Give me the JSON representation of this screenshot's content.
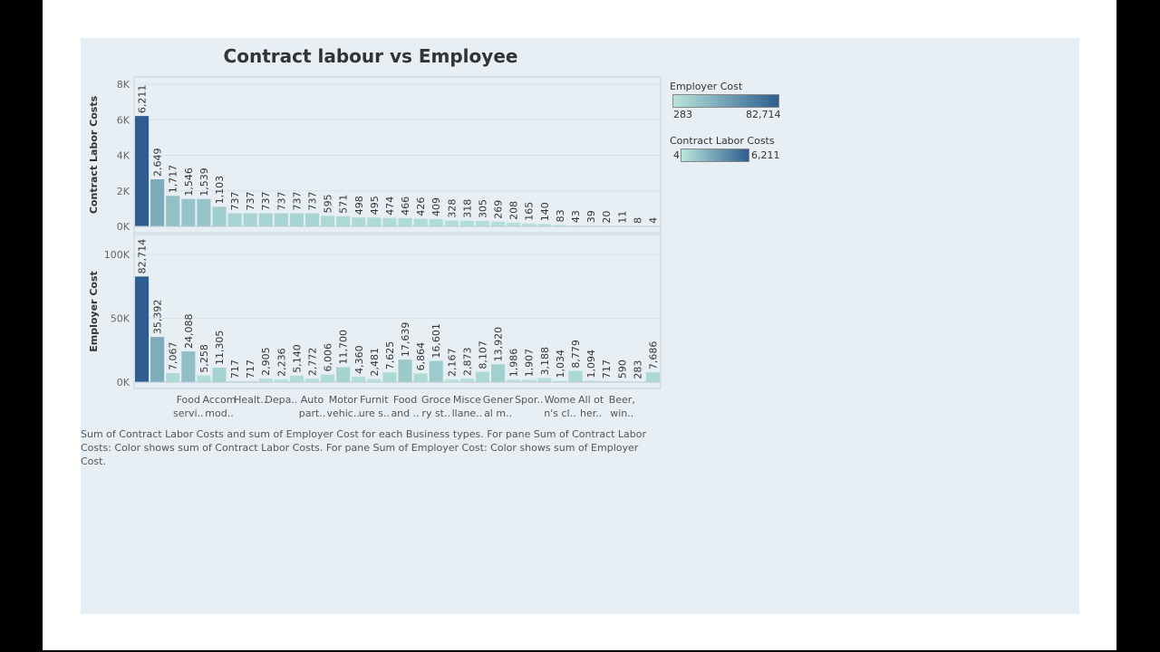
{
  "chart_data": {
    "type": "bar",
    "title": "Contract labour vs Employee",
    "categories": [
      "",
      "",
      "",
      "",
      "",
      "",
      "",
      "",
      "",
      "",
      "",
      "",
      "",
      "",
      "",
      "",
      "",
      "",
      "",
      "",
      "",
      "",
      "",
      "",
      "",
      "",
      "",
      "",
      "",
      "",
      "",
      "",
      "",
      ""
    ],
    "visible_x_labels": [
      [
        "Food",
        "servi.."
      ],
      [
        "Accom",
        "mod.."
      ],
      [
        "Healt..",
        ""
      ],
      [
        "Depa..",
        ""
      ],
      [
        "Auto",
        "part.."
      ],
      [
        "Motor",
        "vehic.."
      ],
      [
        "Furnit",
        "ure s.."
      ],
      [
        "Food",
        "and .."
      ],
      [
        "Groce",
        "ry st.."
      ],
      [
        "Misce",
        "llane.."
      ],
      [
        "Gener",
        "al m.."
      ],
      [
        "Spor..",
        ""
      ],
      [
        "Wome",
        "n's cl.."
      ],
      [
        "All ot",
        "her.."
      ],
      [
        "Beer,",
        "win.."
      ]
    ],
    "series": [
      {
        "name": "Contract Labor Costs",
        "values": [
          6211,
          2649,
          1717,
          1546,
          1539,
          1103,
          737,
          737,
          737,
          737,
          737,
          737,
          595,
          571,
          498,
          495,
          474,
          466,
          426,
          409,
          328,
          318,
          305,
          269,
          208,
          165,
          140,
          83,
          43,
          39,
          20,
          11,
          8,
          4
        ],
        "labels": [
          "6,211",
          "2,649",
          "1,717",
          "1,546",
          "1,539",
          "1,103",
          "737",
          "737",
          "737",
          "737",
          "737",
          "737",
          "595",
          "571",
          "498",
          "495",
          "474",
          "466",
          "426",
          "409",
          "328",
          "318",
          "305",
          "269",
          "208",
          "165",
          "140",
          "83",
          "43",
          "39",
          "20",
          "11",
          "8",
          "4"
        ],
        "ylabel": "Contract Labor Costs",
        "ylim": [
          0,
          8000
        ],
        "ticks": [
          0,
          2000,
          4000,
          6000,
          8000
        ],
        "tick_labels": [
          "0K",
          "2K",
          "4K",
          "6K",
          "8K"
        ]
      },
      {
        "name": "Employer Cost",
        "values": [
          82714,
          35392,
          7067,
          24088,
          5258,
          11305,
          717,
          717,
          2905,
          2236,
          5140,
          2772,
          6006,
          11700,
          4360,
          2481,
          7625,
          17639,
          6864,
          16601,
          2167,
          2873,
          8107,
          13920,
          1986,
          1907,
          3188,
          1034,
          8779,
          1094,
          717,
          590,
          283,
          7686
        ],
        "labels": [
          "82,714",
          "35,392",
          "7,067",
          "24,088",
          "5,258",
          "11,305",
          "717",
          "717",
          "2,905",
          "2,236",
          "5,140",
          "2,772",
          "6,006",
          "11,700",
          "4,360",
          "2,481",
          "7,625",
          "17,639",
          "6,864",
          "16,601",
          "2,167",
          "2,873",
          "8,107",
          "13,920",
          "1,986",
          "1,907",
          "3,188",
          "1,034",
          "8,779",
          "1,094",
          "717",
          "590",
          "283",
          "7,686"
        ],
        "ylabel": "Employer Cost",
        "ylim": [
          0,
          110000
        ],
        "ticks": [
          0,
          50000,
          100000
        ],
        "tick_labels": [
          "0K",
          "50K",
          "100K"
        ]
      }
    ],
    "xlabel": "",
    "grid": true
  },
  "legends": {
    "employer": {
      "title": "Employer Cost",
      "min_label": "283",
      "max_label": "82,714"
    },
    "contract": {
      "title": "Contract Labor Costs",
      "min_label": "4",
      "max_label": "6,211"
    }
  },
  "colors": {
    "low": "#b9e5dc",
    "high": "#2d5e8f"
  },
  "caption": "Sum of Contract Labor Costs and sum of Employer Cost for each Business types.  For pane Sum of Contract Labor Costs:  Color shows sum of Contract Labor Costs.  For pane Sum of Employer Cost:  Color shows sum of Employer Cost."
}
